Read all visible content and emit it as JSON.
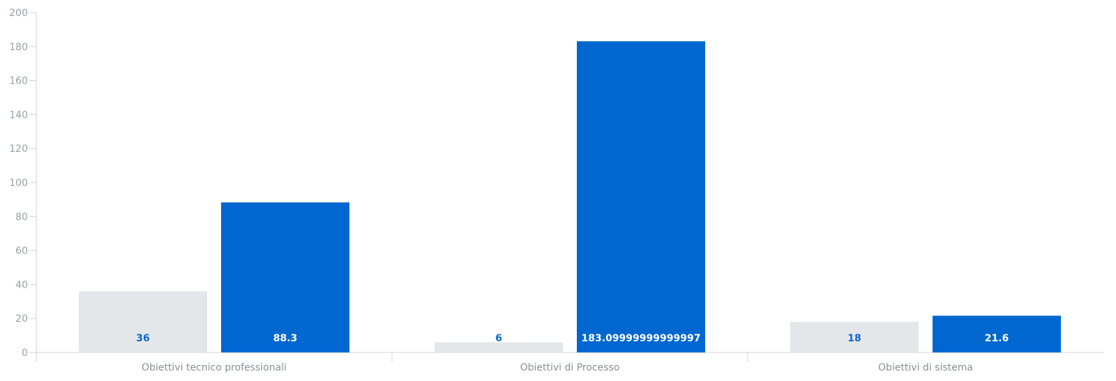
{
  "chart_data": {
    "type": "bar",
    "categories": [
      "Obiettivi tecnico professionali",
      "Obiettivi di Processo",
      "Obiettivi di sistema"
    ],
    "series": [
      {
        "color": "#e4e7ea",
        "label_color": "#0b66d1",
        "values": [
          36,
          6,
          18
        ],
        "labels": [
          "36",
          "6",
          "18"
        ]
      },
      {
        "color": "#0067d0",
        "label_color": "#ffffff",
        "values": [
          88.3,
          183.09999999999997,
          21.6
        ],
        "labels": [
          "88.3",
          "183.09999999999997",
          "21.6"
        ]
      }
    ],
    "title": "",
    "xlabel": "",
    "ylabel": "",
    "ylim": [
      0,
      200
    ],
    "yticks": [
      "0",
      "20",
      "40",
      "60",
      "80",
      "100",
      "120",
      "140",
      "160",
      "180",
      "200"
    ],
    "grid": false,
    "legend": "none"
  }
}
